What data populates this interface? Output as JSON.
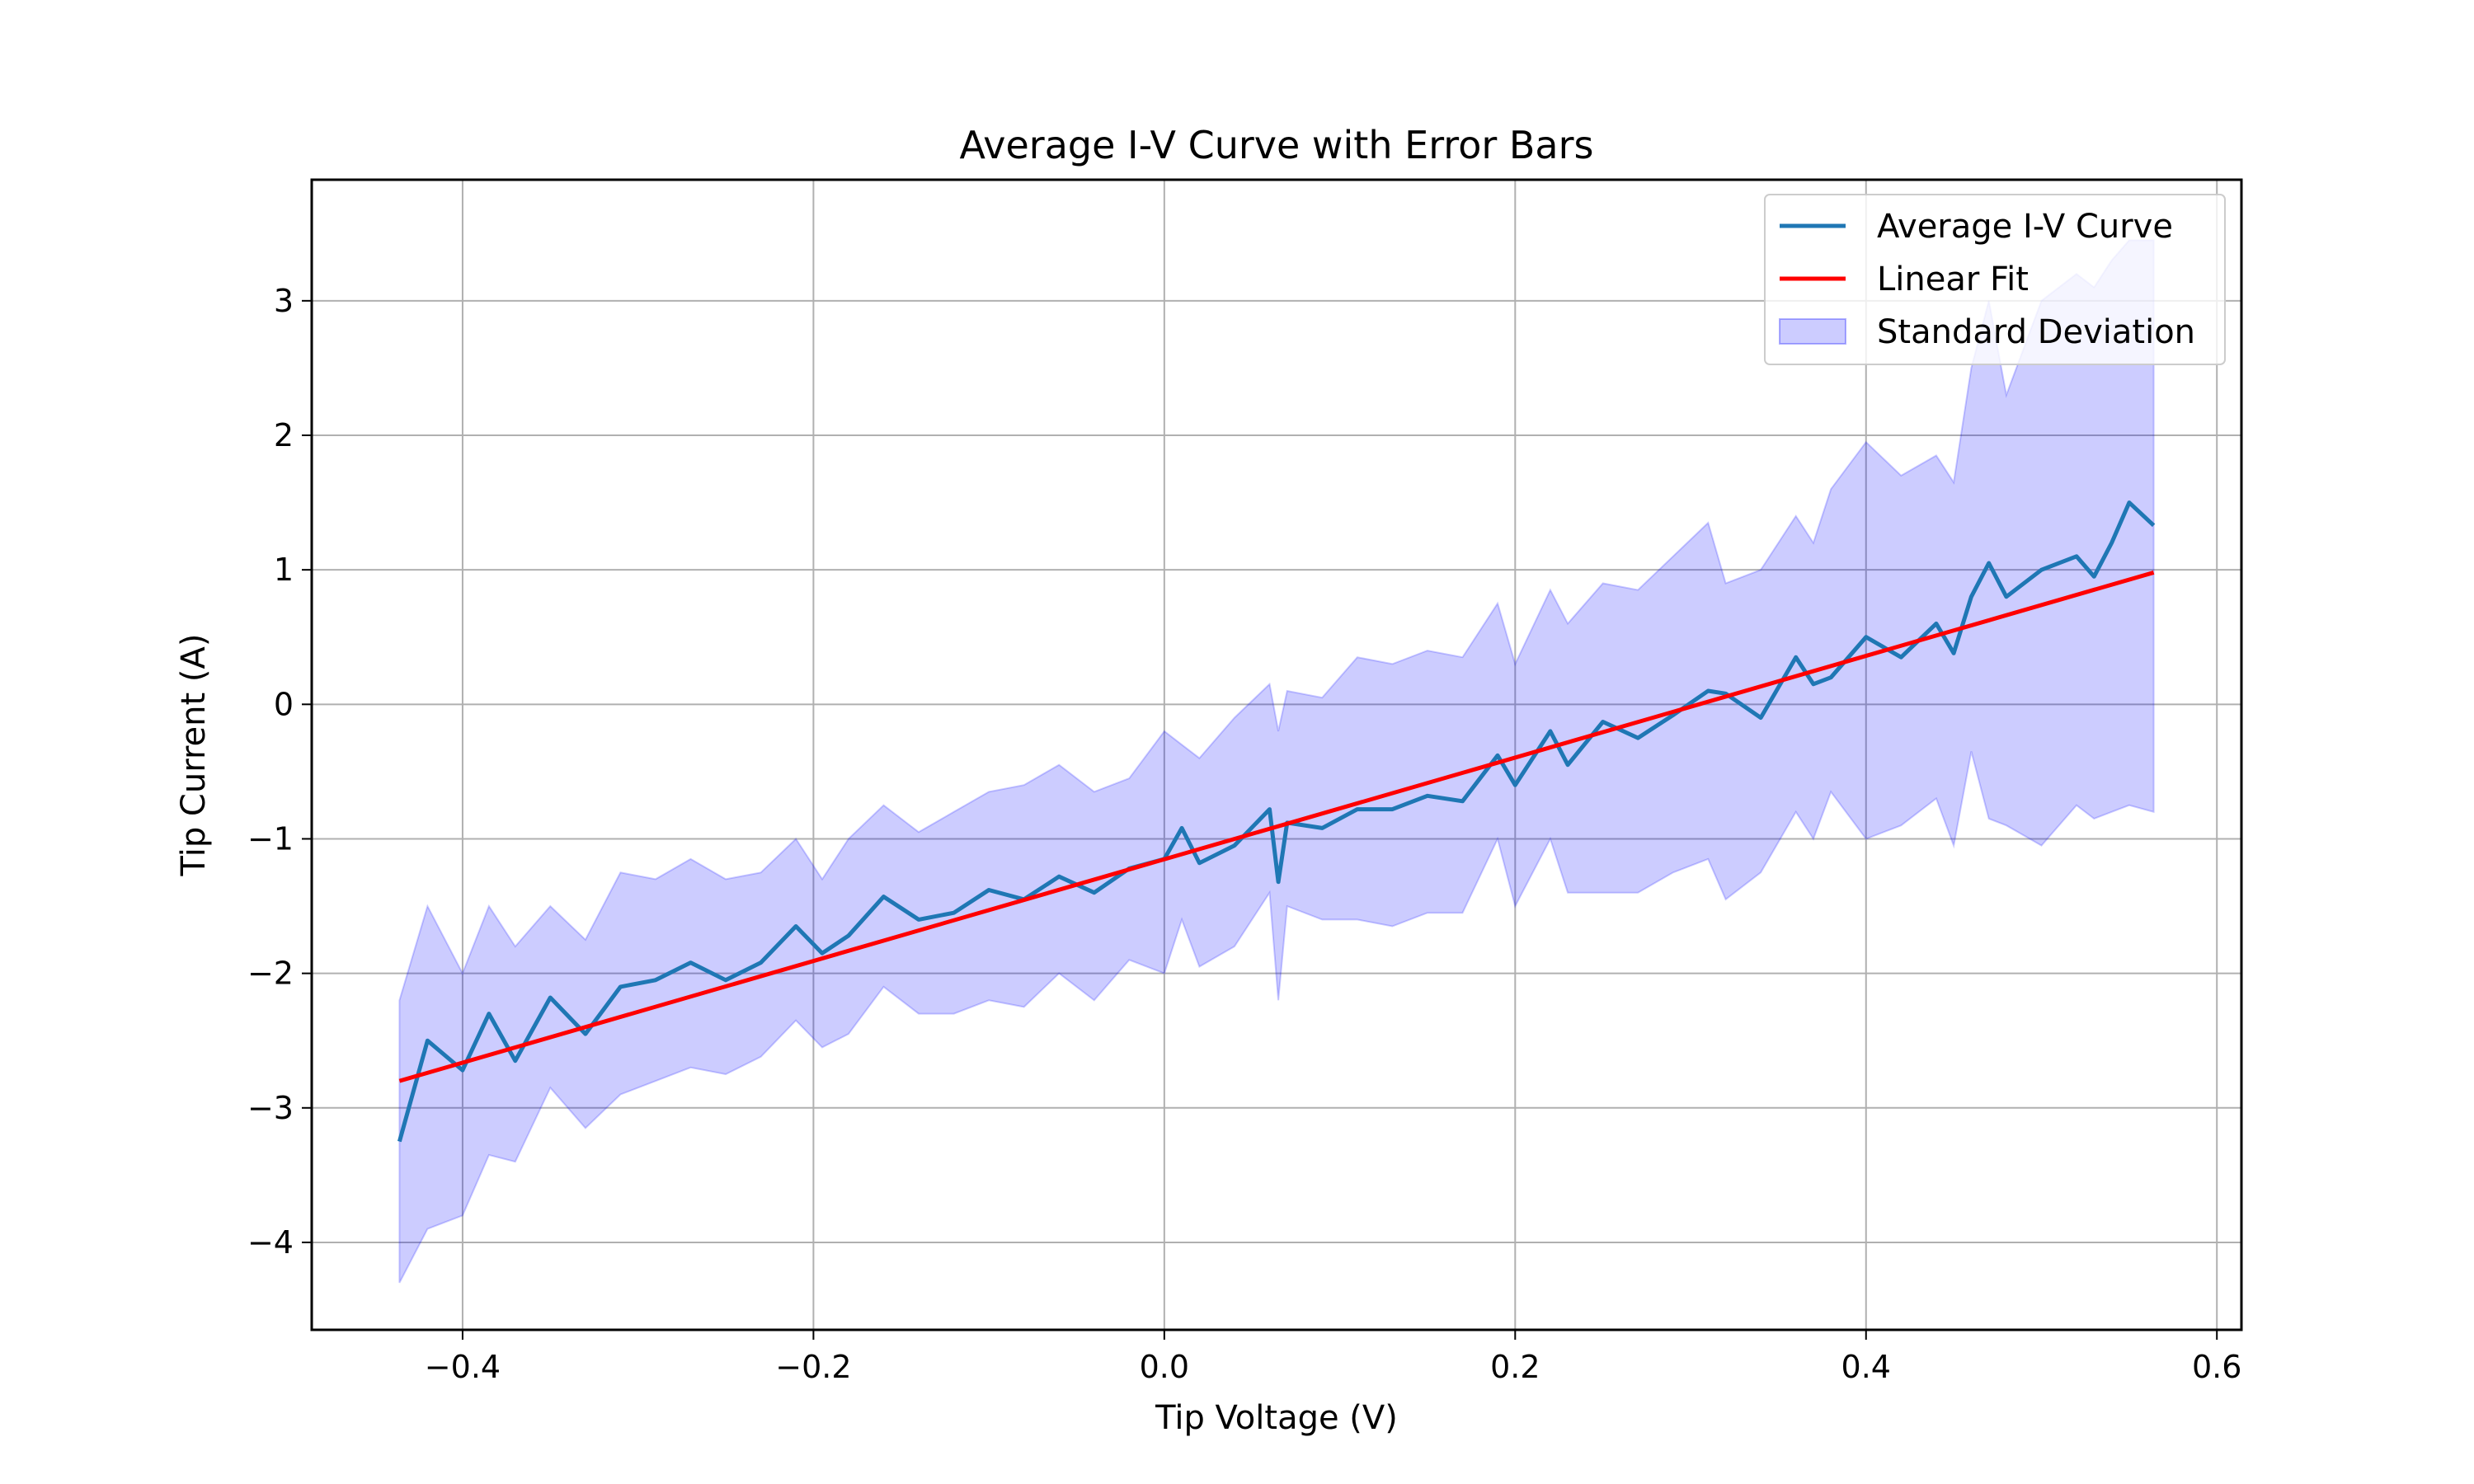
{
  "chart_data": {
    "type": "line",
    "title": "Average I-V Curve with Error Bars",
    "xlabel": "Tip Voltage (V)",
    "ylabel": "Tip Current (A)",
    "xlim": [
      -0.486,
      0.614
    ],
    "ylim": [
      -4.65,
      3.9
    ],
    "grid": true,
    "legend_position": "top-right",
    "x_ticks": [
      -0.4,
      -0.2,
      0.0,
      0.2,
      0.4,
      0.6
    ],
    "x_tick_labels": [
      "−0.4",
      "−0.2",
      "0.0",
      "0.2",
      "0.4",
      "0.6"
    ],
    "y_ticks": [
      -4,
      -3,
      -2,
      -1,
      0,
      1,
      2,
      3
    ],
    "y_tick_labels": [
      "−4",
      "−3",
      "−2",
      "−1",
      "0",
      "1",
      "2",
      "3"
    ],
    "colors": {
      "mean_line": "#1f77b4",
      "fit_line": "#ff0000",
      "band_fill": "#0000ff",
      "grid": "#b0b0b0"
    },
    "series": [
      {
        "name": "Average I-V Curve",
        "kind": "line",
        "x": [
          -0.436,
          -0.42,
          -0.4,
          -0.385,
          -0.37,
          -0.35,
          -0.33,
          -0.31,
          -0.29,
          -0.27,
          -0.25,
          -0.23,
          -0.21,
          -0.195,
          -0.18,
          -0.16,
          -0.14,
          -0.12,
          -0.1,
          -0.08,
          -0.06,
          -0.04,
          -0.02,
          0.0,
          0.01,
          0.02,
          0.04,
          0.06,
          0.065,
          0.07,
          0.09,
          0.11,
          0.13,
          0.15,
          0.17,
          0.19,
          0.2,
          0.22,
          0.23,
          0.25,
          0.27,
          0.29,
          0.31,
          0.32,
          0.34,
          0.36,
          0.37,
          0.38,
          0.4,
          0.42,
          0.44,
          0.45,
          0.46,
          0.47,
          0.48,
          0.5,
          0.52,
          0.53,
          0.54,
          0.55,
          0.564
        ],
        "y": [
          -3.25,
          -2.5,
          -2.72,
          -2.3,
          -2.65,
          -2.18,
          -2.45,
          -2.1,
          -2.05,
          -1.92,
          -2.05,
          -1.92,
          -1.65,
          -1.85,
          -1.72,
          -1.43,
          -1.6,
          -1.55,
          -1.38,
          -1.45,
          -1.28,
          -1.4,
          -1.22,
          -1.15,
          -0.92,
          -1.18,
          -1.05,
          -0.78,
          -1.32,
          -0.88,
          -0.92,
          -0.78,
          -0.78,
          -0.68,
          -0.72,
          -0.38,
          -0.6,
          -0.2,
          -0.45,
          -0.13,
          -0.25,
          -0.08,
          0.1,
          0.08,
          -0.1,
          0.35,
          0.15,
          0.2,
          0.5,
          0.35,
          0.6,
          0.38,
          0.8,
          1.05,
          0.8,
          1.0,
          1.1,
          0.95,
          1.2,
          1.5,
          1.33
        ]
      },
      {
        "name": "Linear Fit",
        "kind": "line",
        "x": [
          -0.436,
          0.564
        ],
        "y": [
          -2.8,
          0.98
        ]
      },
      {
        "name": "Standard Deviation",
        "kind": "band",
        "x": [
          -0.436,
          -0.42,
          -0.4,
          -0.385,
          -0.37,
          -0.35,
          -0.33,
          -0.31,
          -0.29,
          -0.27,
          -0.25,
          -0.23,
          -0.21,
          -0.195,
          -0.18,
          -0.16,
          -0.14,
          -0.12,
          -0.1,
          -0.08,
          -0.06,
          -0.04,
          -0.02,
          0.0,
          0.01,
          0.02,
          0.04,
          0.06,
          0.065,
          0.07,
          0.09,
          0.11,
          0.13,
          0.15,
          0.17,
          0.19,
          0.2,
          0.22,
          0.23,
          0.25,
          0.27,
          0.29,
          0.31,
          0.32,
          0.34,
          0.36,
          0.37,
          0.38,
          0.4,
          0.42,
          0.44,
          0.45,
          0.46,
          0.47,
          0.48,
          0.5,
          0.52,
          0.53,
          0.54,
          0.55,
          0.564
        ],
        "upper": [
          -2.2,
          -1.5,
          -2.0,
          -1.5,
          -1.8,
          -1.5,
          -1.75,
          -1.25,
          -1.3,
          -1.15,
          -1.3,
          -1.25,
          -1.0,
          -1.3,
          -1.0,
          -0.75,
          -0.95,
          -0.8,
          -0.65,
          -0.6,
          -0.45,
          -0.65,
          -0.55,
          -0.2,
          -0.3,
          -0.4,
          -0.1,
          0.15,
          -0.2,
          0.1,
          0.05,
          0.35,
          0.3,
          0.4,
          0.35,
          0.75,
          0.3,
          0.85,
          0.6,
          0.9,
          0.85,
          1.1,
          1.35,
          0.9,
          1.0,
          1.4,
          1.2,
          1.6,
          1.95,
          1.7,
          1.85,
          1.65,
          2.5,
          3.0,
          2.3,
          3.0,
          3.2,
          3.1,
          3.3,
          3.45,
          3.45
        ],
        "lower": [
          -4.3,
          -3.9,
          -3.8,
          -3.35,
          -3.4,
          -2.85,
          -3.15,
          -2.9,
          -2.8,
          -2.7,
          -2.75,
          -2.62,
          -2.35,
          -2.55,
          -2.45,
          -2.1,
          -2.3,
          -2.3,
          -2.2,
          -2.25,
          -2.0,
          -2.2,
          -1.9,
          -2.0,
          -1.6,
          -1.95,
          -1.8,
          -1.4,
          -2.2,
          -1.5,
          -1.6,
          -1.6,
          -1.65,
          -1.55,
          -1.55,
          -1.0,
          -1.5,
          -1.0,
          -1.4,
          -1.4,
          -1.4,
          -1.25,
          -1.15,
          -1.45,
          -1.25,
          -0.8,
          -1.0,
          -0.65,
          -1.0,
          -0.9,
          -0.7,
          -1.05,
          -0.35,
          -0.85,
          -0.9,
          -1.05,
          -0.75,
          -0.85,
          -0.8,
          -0.75,
          -0.8
        ]
      }
    ]
  }
}
